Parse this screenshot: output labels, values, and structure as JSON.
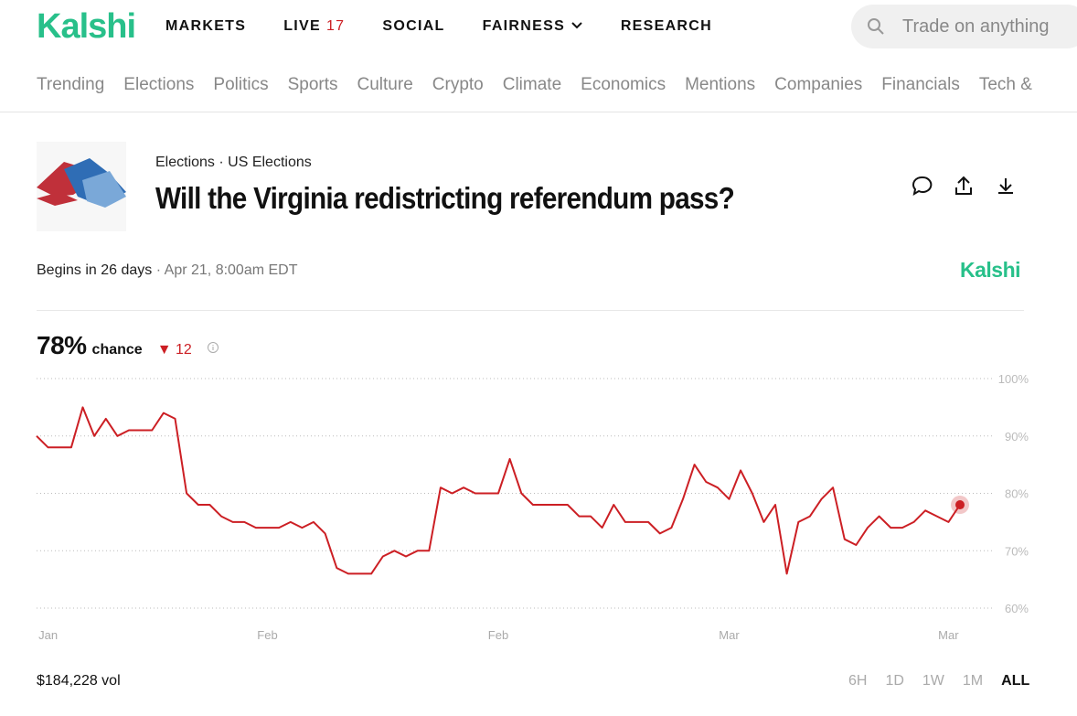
{
  "nav": {
    "logo": "Kalshi",
    "items": [
      "MARKETS",
      "LIVE",
      "SOCIAL",
      "FAIRNESS",
      "RESEARCH"
    ],
    "live_count": "17",
    "search_placeholder": "Trade on anything"
  },
  "categories": [
    "Trending",
    "Elections",
    "Politics",
    "Sports",
    "Culture",
    "Crypto",
    "Climate",
    "Economics",
    "Mentions",
    "Companies",
    "Financials",
    "Tech &"
  ],
  "market": {
    "breadcrumb": [
      "Elections",
      "US Elections"
    ],
    "title": "Will the Virginia redistricting referendum pass?",
    "begins": "Begins in 26 days",
    "date": "Apr 21, 8:00am EDT",
    "brand": "Kalshi",
    "probability": "78%",
    "probability_label": "chance",
    "change": "12"
  },
  "chart_data": {
    "type": "line",
    "color": "#cc1f24",
    "grid": true,
    "categories": [
      null,
      "Jan",
      null,
      null,
      null,
      null,
      null,
      null,
      null,
      null,
      null,
      null,
      null,
      null,
      null,
      null,
      null,
      null,
      null,
      null,
      "Feb",
      null,
      null,
      null,
      null,
      null,
      null,
      null,
      null,
      null,
      null,
      null,
      null,
      null,
      null,
      null,
      null,
      null,
      null,
      null,
      "Feb",
      null,
      null,
      null,
      null,
      null,
      null,
      null,
      null,
      null,
      null,
      null,
      null,
      null,
      null,
      null,
      null,
      null,
      null,
      null,
      "Mar",
      null,
      null,
      null,
      null,
      null,
      null,
      null,
      null,
      null,
      null,
      null,
      null,
      null,
      null,
      null,
      null,
      null,
      null,
      "Mar",
      null
    ],
    "values": [
      90,
      88,
      88,
      88,
      95,
      90,
      93,
      90,
      91,
      91,
      91,
      94,
      93,
      80,
      78,
      78,
      76,
      75,
      75,
      74,
      74,
      74,
      75,
      74,
      75,
      73,
      67,
      66,
      66,
      66,
      69,
      70,
      69,
      70,
      70,
      81,
      80,
      81,
      80,
      80,
      80,
      86,
      80,
      78,
      78,
      78,
      78,
      76,
      76,
      74,
      78,
      75,
      75,
      75,
      73,
      74,
      79,
      85,
      82,
      81,
      79,
      84,
      80,
      75,
      78,
      66,
      75,
      76,
      79,
      81,
      72,
      71,
      74,
      76,
      74,
      74,
      75,
      77,
      76,
      75,
      78
    ],
    "ylim": [
      60,
      100
    ],
    "yticks": [
      {
        "value": 60,
        "label": "60%"
      },
      {
        "value": 70,
        "label": "70%"
      },
      {
        "value": 80,
        "label": "80%"
      },
      {
        "value": 90,
        "label": "90%"
      },
      {
        "value": 100,
        "label": "100%"
      }
    ]
  },
  "footer": {
    "volume": "$184,228 vol",
    "ranges": [
      "6H",
      "1D",
      "1W",
      "1M",
      "ALL"
    ]
  }
}
